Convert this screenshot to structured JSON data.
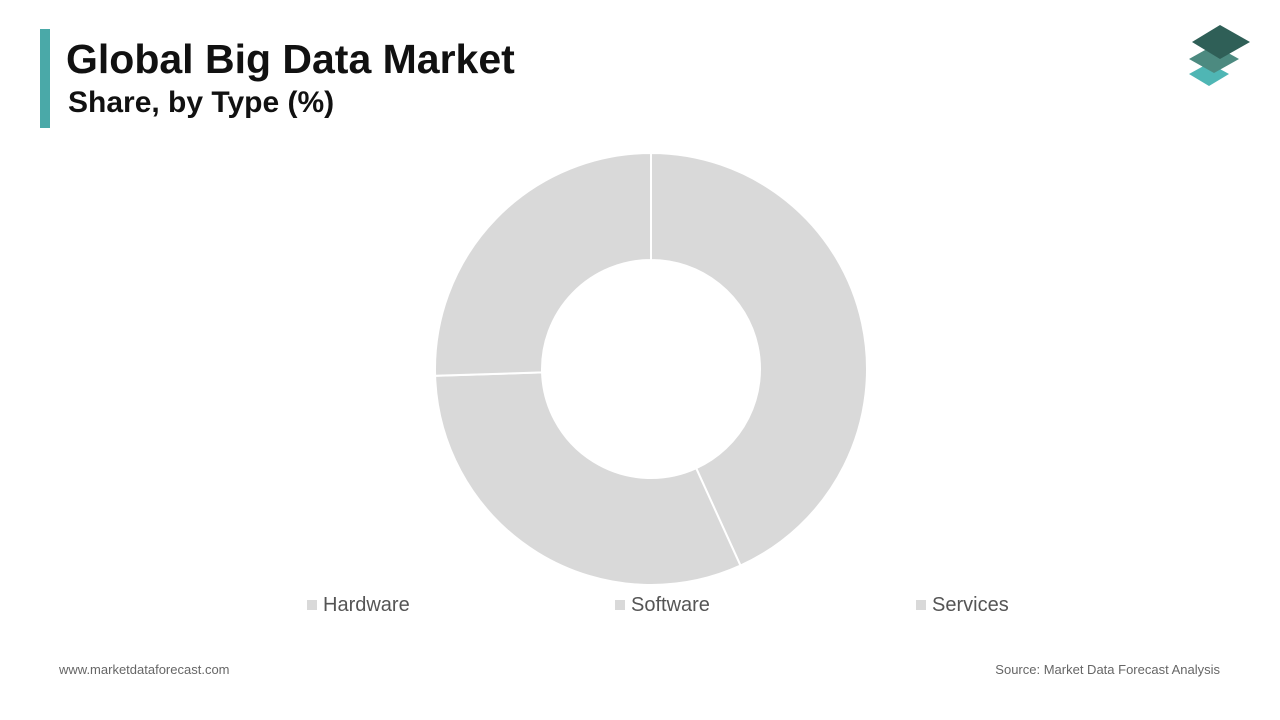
{
  "header": {
    "title": "Global Big Data Market",
    "subtitle": "Share, by Type (%)"
  },
  "chart_data": {
    "type": "pie",
    "donut": true,
    "categories": [
      "Hardware",
      "Software",
      "Services"
    ],
    "values": [
      43.2,
      31.3,
      25.5
    ],
    "colors": [
      "#d9d9d9",
      "#d9d9d9",
      "#d9d9d9"
    ],
    "legend_position": "bottom"
  },
  "footer": {
    "website": "www.marketdataforecast.com",
    "source": "Source: Market Data Forecast Analysis"
  },
  "theme": {
    "accent": "#4aa9a8",
    "logo_dark": "#2f5f57",
    "logo_mid": "#4c8a80",
    "logo_light": "#4fb6b4"
  }
}
